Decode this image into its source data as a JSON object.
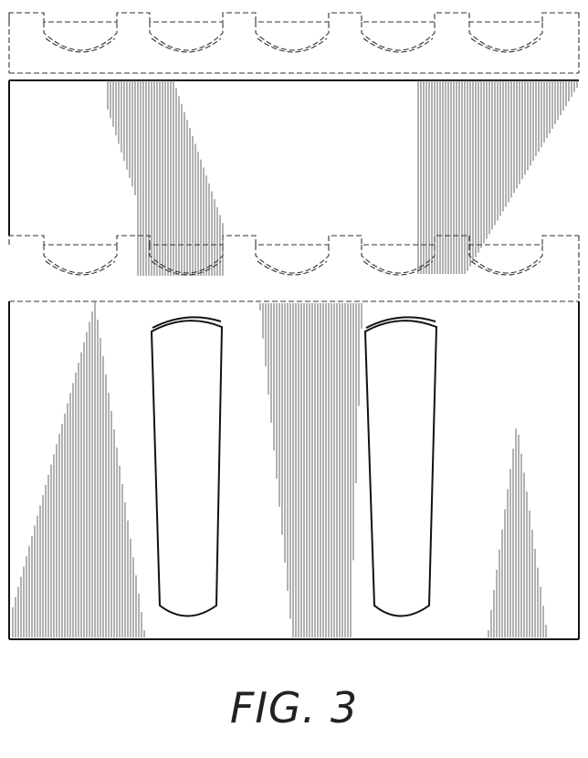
{
  "figure": {
    "caption": "FIG. 3"
  }
}
